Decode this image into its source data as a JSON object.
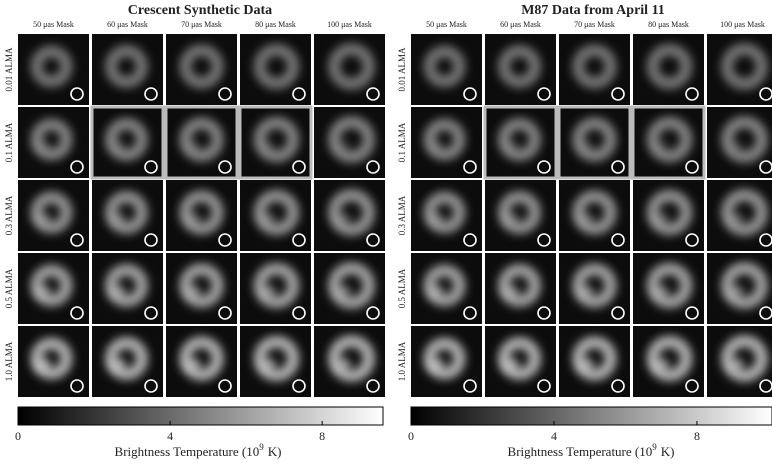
{
  "panels": [
    {
      "title": "Crescent Synthetic Data",
      "columns": [
        "50 μas Mask",
        "60 μas Mask",
        "70 μas Mask",
        "80 μas Mask",
        "100 μas Mask"
      ],
      "rows": [
        "0.01 ALMA",
        "0.1 ALMA",
        "0.3 ALMA",
        "0.5 ALMA",
        "1.0 ALMA"
      ],
      "colorbar": {
        "lim": [
          0,
          9.6
        ],
        "ticks": [
          0,
          4,
          8
        ],
        "label_prefix": "Brightness Temperature (10",
        "label_exponent": "9",
        "label_suffix": "K)"
      }
    },
    {
      "title": "M87 Data from April 11",
      "columns": [
        "50 μas Mask",
        "60 μas Mask",
        "70 μas Mask",
        "80 μas Mask",
        "100 μas Mask"
      ],
      "rows": [
        "0.01 ALMA",
        "0.1 ALMA",
        "0.3 ALMA",
        "0.5 ALMA",
        "1.0 ALMA"
      ],
      "colorbar": {
        "lim": [
          0,
          10.1
        ],
        "ticks": [
          0,
          4,
          8
        ],
        "label_prefix": "Brightness Temperature (10",
        "label_exponent": "9",
        "label_suffix": "K)"
      }
    }
  ]
}
